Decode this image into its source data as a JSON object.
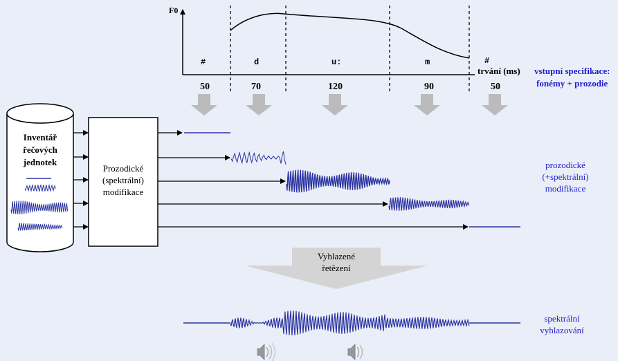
{
  "f0_label": "F0",
  "phonemes": [
    "#",
    "d",
    "u:",
    "m",
    "#"
  ],
  "duration_label": "trvání (ms)",
  "durations": [
    "50",
    "70",
    "120",
    "90",
    "50"
  ],
  "input_spec": [
    "vstupní specifikace:",
    "fonémy + prozodie"
  ],
  "inventory": [
    "Inventář",
    "řečových",
    "jednotek"
  ],
  "modifier": [
    "Prozodické",
    "(spektrální)",
    "modifikace"
  ],
  "prosodic_side": [
    "prozodické",
    "(+spektrální)",
    "modifikace"
  ],
  "smooth_concat": [
    "Vyhlazené",
    "řetězení"
  ],
  "spectral_side": [
    "spektrální",
    "vyhlazování"
  ],
  "colors": {
    "wave": "#2a33a0",
    "side_text": "#1f1fcc",
    "arrow_gray": "#bbbbbb",
    "background": "#eaeef8"
  }
}
